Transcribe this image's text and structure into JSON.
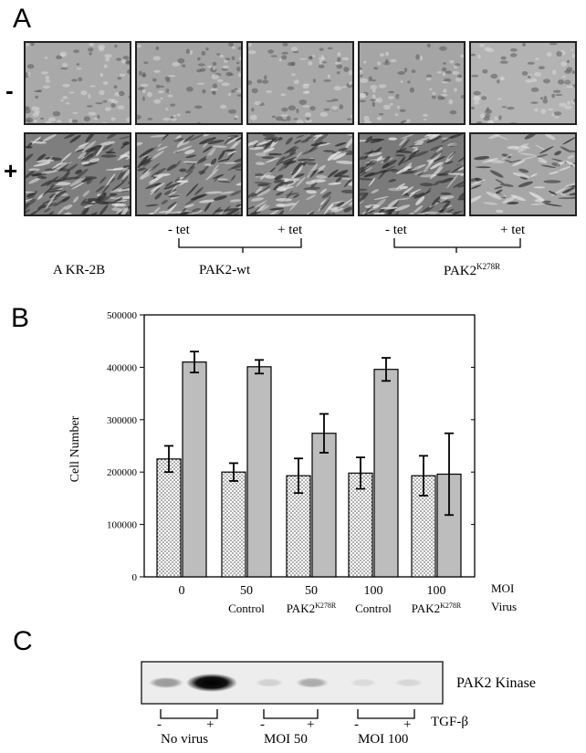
{
  "panel_a": {
    "letter": "A",
    "row_minus": "-",
    "row_plus": "+",
    "cells": [
      {
        "tone_minus": "#a9a9a9",
        "tone_plus": "#7e7e7e",
        "dense": 1.0
      },
      {
        "tone_minus": "#a4a4a4",
        "tone_plus": "#888888",
        "dense": 0.9
      },
      {
        "tone_minus": "#a8a8a8",
        "tone_plus": "#8a8a8a",
        "dense": 0.9
      },
      {
        "tone_minus": "#a5a5a5",
        "tone_plus": "#7a7a7a",
        "dense": 1.0
      },
      {
        "tone_minus": "#b3b3b3",
        "tone_plus": "#a6a6a6",
        "dense": 0.5
      }
    ],
    "label_akr": "A KR-2B",
    "pak2wt_minus_tet": "- tet",
    "pak2wt_plus_tet": "+ tet",
    "pak2wt_label": "PAK2-wt",
    "mut_minus_tet": "- tet",
    "mut_plus_tet": "+ tet",
    "mut_label_main": "PAK2",
    "mut_label_sup": "K278R"
  },
  "panel_b": {
    "letter": "B",
    "ylabel": "Cell Number",
    "row_label_moi": "MOI",
    "row_label_virus": "Virus",
    "virus_control": "Control",
    "virus_pak2_main": "PAK2",
    "virus_pak2_sup": "K278R",
    "chart_data": {
      "type": "bar",
      "categories": [
        "0",
        "50",
        "50",
        "100",
        "100"
      ],
      "category_virus": [
        "",
        "Control",
        "PAK2K278R",
        "Control",
        "PAK2K278R"
      ],
      "ylim": [
        0,
        500000
      ],
      "yticks": [
        0,
        100000,
        200000,
        300000,
        400000,
        500000
      ],
      "series": [
        {
          "fill": "dotted",
          "values": [
            225000,
            200000,
            193000,
            198000,
            193000
          ],
          "errors": [
            25000,
            17000,
            33000,
            30000,
            38000
          ]
        },
        {
          "fill": "#bdbdbd",
          "values": [
            410000,
            401000,
            274000,
            396000,
            196000
          ],
          "errors": [
            20000,
            13000,
            37000,
            22000,
            78000
          ]
        }
      ],
      "grid": false
    }
  },
  "panel_c": {
    "letter": "C",
    "blot_label": "PAK2 Kinase",
    "treatment_label": "TGF-β",
    "groups": [
      {
        "label": "No virus",
        "minus": "-",
        "plus": "+",
        "band_minus": 0.35,
        "band_plus": 1.0
      },
      {
        "label": "MOI 50",
        "minus": "-",
        "plus": "+",
        "band_minus": 0.12,
        "band_plus": 0.28
      },
      {
        "label": "MOI 100",
        "minus": "-",
        "plus": "+",
        "band_minus": 0.08,
        "band_plus": 0.1
      }
    ]
  }
}
